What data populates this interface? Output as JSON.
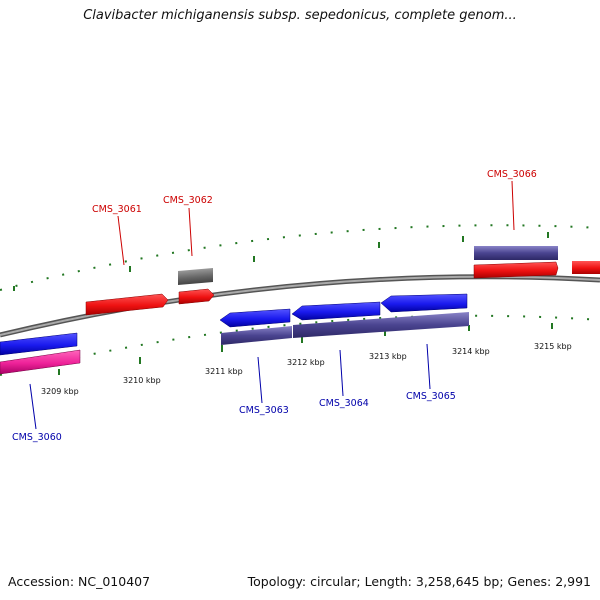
{
  "title": "Clavibacter michiganensis subsp. sepedonicus, complete genom...",
  "footer": {
    "accession": "Accession: NC_010407",
    "stats": "Topology: circular; Length: 3,258,645 bp; Genes: 2,991"
  },
  "colors": {
    "forward_label": "#cc0000",
    "reverse_label": "#0000aa",
    "gene_red": "#ee1111",
    "gene_blue": "#1a1aee",
    "gene_purple": "#4a4490",
    "gene_gray": "#666666",
    "gene_magenta": "#ee2299",
    "backbone": "#888888",
    "tick": "#227722"
  },
  "ruler": [
    "3209 kbp",
    "3210 kbp",
    "3211 kbp",
    "3212 kbp",
    "3213 kbp",
    "3214 kbp",
    "3215 kbp"
  ],
  "gene_labels": {
    "cms_3060": "CMS_3060",
    "cms_3061": "CMS_3061",
    "cms_3062": "CMS_3062",
    "cms_3063": "CMS_3063",
    "cms_3064": "CMS_3064",
    "cms_3065": "CMS_3065",
    "cms_3066": "CMS_3066"
  }
}
